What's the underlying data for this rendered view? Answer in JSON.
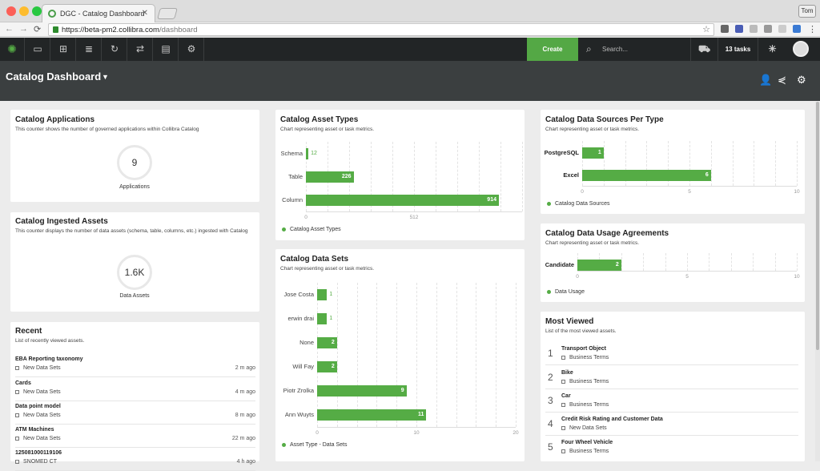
{
  "browser": {
    "tab_title": "DGC - Catalog Dashboard",
    "url_host": "https://beta-pm2.collibra.com",
    "url_path": "/dashboard",
    "user": "Tom"
  },
  "header": {
    "create_label": "Create",
    "search_placeholder": "Search...",
    "tasks_label": "13 tasks"
  },
  "page": {
    "title": "Catalog Dashboard"
  },
  "cards": {
    "applications": {
      "title": "Catalog Applications",
      "subtitle": "This counter shows the number of governed applications within Collibra Catalog",
      "value": "9",
      "label": "Applications"
    },
    "ingested": {
      "title": "Catalog Ingested Assets",
      "subtitle": "This counter displays the number of data assets (schema, table, columns, etc.) ingested with Catalog",
      "value": "1.6K",
      "label": "Data Assets"
    },
    "recent": {
      "title": "Recent",
      "subtitle": "List of recently viewed assets.",
      "items": [
        {
          "title": "EBA Reporting taxonomy",
          "type": "New Data Sets",
          "age": "2 m ago"
        },
        {
          "title": "Cards",
          "type": "New Data Sets",
          "age": "4 m ago"
        },
        {
          "title": "Data point model",
          "type": "New Data Sets",
          "age": "8 m ago"
        },
        {
          "title": "ATM Machines",
          "type": "New Data Sets",
          "age": "22 m ago"
        },
        {
          "title": "125081000119106",
          "type": "SNOMED CT",
          "age": "4 h ago"
        }
      ]
    },
    "asset_types": {
      "title": "Catalog Asset Types",
      "subtitle": "Chart representing asset or task metrics.",
      "legend": "Catalog Asset Types"
    },
    "data_sets": {
      "title": "Catalog Data Sets",
      "subtitle": "Chart representing asset or task metrics.",
      "legend": "Asset Type - Data Sets"
    },
    "sources": {
      "title": "Catalog Data Sources Per Type",
      "subtitle": "Chart representing asset or task metrics.",
      "legend": "Catalog Data Sources"
    },
    "usage": {
      "title": "Catalog Data Usage Agreements",
      "subtitle": "Chart representing asset or task metrics.",
      "legend": "Data Usage"
    },
    "most_viewed": {
      "title": "Most Viewed",
      "subtitle": "List of the most viewed assets.",
      "items": [
        {
          "rank": "1",
          "title": "Transport Object",
          "type": "Business Terms"
        },
        {
          "rank": "2",
          "title": "Bike",
          "type": "Business Terms"
        },
        {
          "rank": "3",
          "title": "Car",
          "type": "Business Terms"
        },
        {
          "rank": "4",
          "title": "Credit Risk Rating and Customer Data",
          "type": "New Data Sets"
        },
        {
          "rank": "5",
          "title": "Four Wheel Vehicle",
          "type": "Business Terms"
        }
      ]
    }
  },
  "chart_data": [
    {
      "type": "bar",
      "orientation": "horizontal",
      "categories": [
        "Schema",
        "Table",
        "Column"
      ],
      "values": [
        12,
        226,
        914
      ],
      "xlim": [
        0,
        1024
      ],
      "xticks": [
        "0",
        "512"
      ],
      "legend": "Catalog Asset Types"
    },
    {
      "type": "bar",
      "orientation": "horizontal",
      "categories": [
        "Jose Costa",
        "erwin drai",
        "None",
        "Will Fay",
        "Piotr Zrolka",
        "Ann Wuyts"
      ],
      "values": [
        1,
        1,
        2,
        2,
        9,
        11
      ],
      "xlim": [
        0,
        20
      ],
      "xticks": [
        "0",
        "10",
        "20"
      ],
      "legend": "Asset Type - Data Sets"
    },
    {
      "type": "bar",
      "orientation": "horizontal",
      "categories": [
        "PostgreSQL",
        "Excel"
      ],
      "values": [
        1,
        6
      ],
      "xlim": [
        0,
        10
      ],
      "xticks": [
        "0",
        "5",
        "10"
      ],
      "legend": "Catalog Data Sources"
    },
    {
      "type": "bar",
      "orientation": "horizontal",
      "categories": [
        "Candidate"
      ],
      "values": [
        2
      ],
      "xlim": [
        0,
        10
      ],
      "xticks": [
        "0",
        "5",
        "10"
      ],
      "legend": "Data Usage"
    }
  ],
  "colors": {
    "accent": "#55ac45",
    "header": "#222526",
    "subheader": "#3b3f40"
  }
}
